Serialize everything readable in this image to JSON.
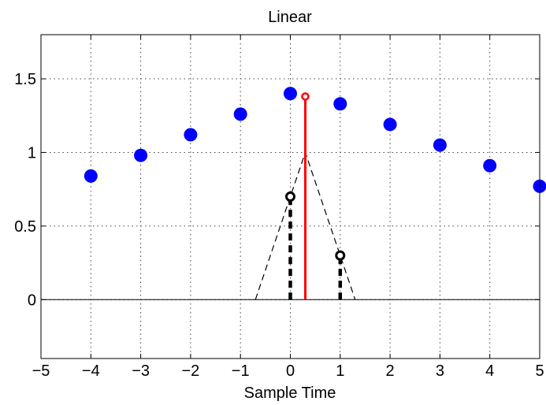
{
  "chart_data": {
    "type": "scatter",
    "title": "Linear",
    "xlabel": "Sample Time",
    "ylabel": "",
    "xlim": [
      -5,
      5
    ],
    "ylim": [
      -0.4,
      1.8
    ],
    "grid": true,
    "xticks": [
      "−5",
      "−4",
      "−3",
      "−2",
      "−1",
      "0",
      "1",
      "2",
      "3",
      "4",
      "5"
    ],
    "xtick_values": [
      -5,
      -4,
      -3,
      -2,
      -1,
      0,
      1,
      2,
      3,
      4,
      5
    ],
    "yticks": [
      "0",
      "0.5",
      "1",
      "1.5"
    ],
    "ytick_values": [
      0,
      0.5,
      1,
      1.5
    ],
    "colors": {
      "samples": "#0000ff",
      "interpolated": "#ff0000",
      "weights": "#000000",
      "kernel": "#000000",
      "grid": "#444444"
    },
    "series": [
      {
        "kind": "samples",
        "x": [
          -4,
          -3,
          -2,
          -1,
          0,
          1,
          2,
          3,
          4,
          5
        ],
        "y": [
          0.84,
          0.98,
          1.12,
          1.26,
          1.4,
          1.33,
          1.19,
          1.05,
          0.91,
          0.77
        ]
      },
      {
        "kind": "interpolated",
        "x": [
          0.3
        ],
        "y": [
          1.38
        ]
      },
      {
        "kind": "weights",
        "x": [
          0,
          1
        ],
        "y": [
          0.7,
          0.3
        ]
      },
      {
        "kind": "kernel",
        "x": [
          -0.7,
          0.3,
          1.3
        ],
        "y": [
          0,
          1,
          0
        ]
      },
      {
        "kind": "baseline",
        "x": [
          -5,
          5
        ],
        "y": [
          0,
          0
        ]
      }
    ]
  }
}
